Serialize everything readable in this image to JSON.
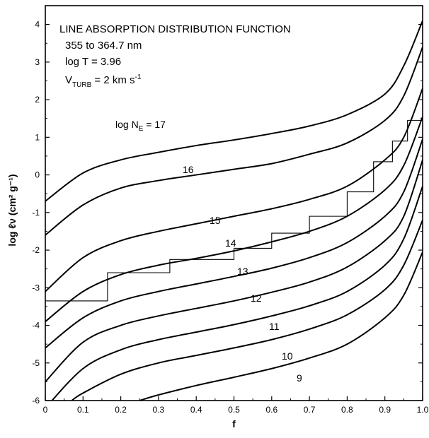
{
  "chart_data": {
    "type": "line",
    "title": "",
    "xlabel": "f",
    "ylabel": "log ℓν (cm² g⁻¹)",
    "xlim": [
      0,
      1.0
    ],
    "ylim": [
      -6,
      4.5
    ],
    "x_ticks": [
      "0",
      "0.1",
      "0.2",
      "0.3",
      "0.4",
      "0.5",
      "0.6",
      "0.7",
      "0.8",
      "0.9",
      "1.0"
    ],
    "y_ticks": [
      "-6",
      "-5",
      "-4",
      "-3",
      "-2",
      "-1",
      "0",
      "1",
      "2",
      "3",
      "4"
    ],
    "grid": false,
    "legend": "none",
    "annotations": {
      "line1": "LINE ABSORPTION DISTRIBUTION FUNCTION",
      "line2": "355  to  364.7 nm",
      "line3": "log T = 3.96",
      "line4": "V",
      "line4_sub": "TURB",
      "line4_rest": " = 2 km s",
      "line4_sup": "-1"
    },
    "curve_label_prefix": "log N",
    "curve_label_prefix_sub": "E",
    "curve_label_prefix_suffix": " = ",
    "series": [
      {
        "name": "17",
        "x": [
          0,
          0.1,
          0.2,
          0.3,
          0.4,
          0.5,
          0.6,
          0.7,
          0.8,
          0.9,
          0.95,
          1.0
        ],
        "y": [
          -0.7,
          0.05,
          0.4,
          0.6,
          0.78,
          0.93,
          1.1,
          1.3,
          1.6,
          2.15,
          2.9,
          4.1
        ]
      },
      {
        "name": "16",
        "x": [
          0,
          0.1,
          0.2,
          0.3,
          0.4,
          0.5,
          0.6,
          0.7,
          0.8,
          0.9,
          0.95,
          1.0
        ],
        "y": [
          -1.6,
          -0.8,
          -0.35,
          -0.15,
          0.0,
          0.15,
          0.3,
          0.55,
          0.85,
          1.45,
          2.1,
          3.4
        ]
      },
      {
        "name": "15",
        "x": [
          0,
          0.1,
          0.2,
          0.3,
          0.4,
          0.5,
          0.6,
          0.7,
          0.8,
          0.9,
          0.95,
          1.0
        ],
        "y": [
          -3.1,
          -2.2,
          -1.75,
          -1.5,
          -1.3,
          -1.1,
          -0.9,
          -0.65,
          -0.3,
          0.4,
          1.0,
          2.3
        ]
      },
      {
        "name": "14",
        "x": [
          0,
          0.1,
          0.2,
          0.3,
          0.4,
          0.5,
          0.6,
          0.7,
          0.8,
          0.9,
          0.95,
          1.0
        ],
        "y": [
          -3.9,
          -3.1,
          -2.65,
          -2.4,
          -2.22,
          -2.02,
          -1.78,
          -1.5,
          -1.1,
          -0.4,
          0.25,
          1.55
        ]
      },
      {
        "name": "13",
        "x": [
          0,
          0.1,
          0.2,
          0.3,
          0.4,
          0.5,
          0.6,
          0.7,
          0.8,
          0.9,
          0.95,
          1.0
        ],
        "y": [
          -4.6,
          -3.8,
          -3.35,
          -3.1,
          -2.9,
          -2.7,
          -2.48,
          -2.2,
          -1.8,
          -1.1,
          -0.45,
          0.95
        ]
      },
      {
        "name": "12",
        "x": [
          0,
          0.1,
          0.2,
          0.3,
          0.4,
          0.5,
          0.6,
          0.7,
          0.8,
          0.9,
          0.95,
          1.0
        ],
        "y": [
          -5.5,
          -4.45,
          -4.0,
          -3.75,
          -3.55,
          -3.35,
          -3.12,
          -2.85,
          -2.45,
          -1.75,
          -1.1,
          0.4
        ]
      },
      {
        "name": "11",
        "x": [
          0,
          0.1,
          0.2,
          0.3,
          0.4,
          0.5,
          0.6,
          0.7,
          0.8,
          0.9,
          0.95,
          1.0
        ],
        "y": [
          -6.2,
          -5.15,
          -4.65,
          -4.38,
          -4.18,
          -3.98,
          -3.75,
          -3.48,
          -3.1,
          -2.4,
          -1.7,
          -0.3
        ]
      },
      {
        "name": "10",
        "x": [
          0.07,
          0.1,
          0.2,
          0.3,
          0.4,
          0.5,
          0.6,
          0.7,
          0.8,
          0.9,
          0.95,
          1.0
        ],
        "y": [
          -6.0,
          -5.8,
          -5.3,
          -5.0,
          -4.8,
          -4.6,
          -4.38,
          -4.1,
          -3.72,
          -3.05,
          -2.4,
          -1.2
        ]
      },
      {
        "name": "9",
        "x": [
          0.25,
          0.3,
          0.4,
          0.5,
          0.6,
          0.7,
          0.8,
          0.9,
          0.95,
          1.0
        ],
        "y": [
          -6.0,
          -5.85,
          -5.6,
          -5.38,
          -5.15,
          -4.87,
          -4.5,
          -3.8,
          -3.2,
          -2.05
        ]
      },
      {
        "name": "step",
        "x": [
          0,
          0.165,
          0.165,
          0.33,
          0.33,
          0.5,
          0.5,
          0.6,
          0.6,
          0.7,
          0.7,
          0.8,
          0.8,
          0.87,
          0.87,
          0.92,
          0.92,
          0.96,
          0.96,
          0.985,
          0.985,
          1.0
        ],
        "y": [
          -3.35,
          -3.35,
          -2.6,
          -2.6,
          -2.25,
          -2.25,
          -1.95,
          -1.95,
          -1.55,
          -1.55,
          -1.1,
          -1.1,
          -0.45,
          -0.45,
          0.35,
          0.35,
          0.9,
          0.9,
          1.45,
          1.45,
          1.45,
          1.45
        ],
        "style": "step"
      }
    ]
  }
}
